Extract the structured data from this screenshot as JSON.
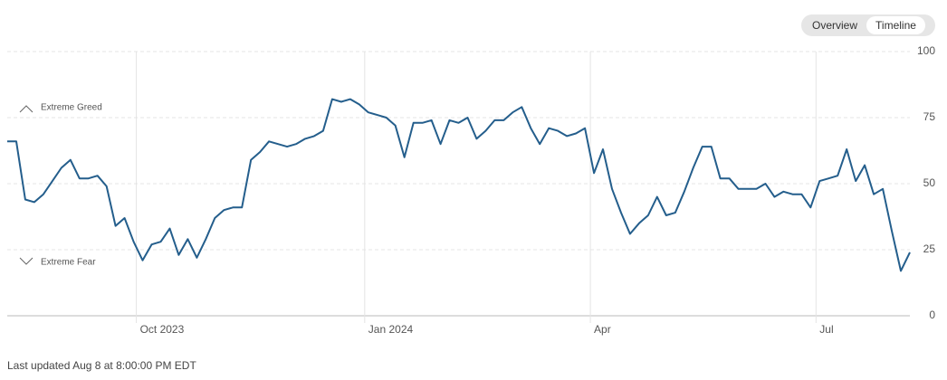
{
  "toggle": {
    "options": [
      "Overview",
      "Timeline"
    ],
    "selected": "Timeline"
  },
  "chart_data": {
    "type": "line",
    "color": "#245e8c",
    "values": [
      66,
      66,
      44,
      43,
      46,
      51,
      56,
      59,
      52,
      52,
      53,
      49,
      34,
      37,
      28,
      21,
      27,
      28,
      33,
      23,
      29,
      22,
      29,
      37,
      40,
      41,
      41,
      59,
      62,
      66,
      65,
      64,
      65,
      67,
      68,
      70,
      82,
      81,
      82,
      80,
      77,
      76,
      75,
      72,
      60,
      73,
      73,
      74,
      65,
      74,
      73,
      75,
      67,
      70,
      74,
      74,
      77,
      79,
      71,
      65,
      71,
      70,
      68,
      69,
      71,
      54,
      63,
      48,
      39,
      31,
      35,
      38,
      45,
      38,
      39,
      47,
      56,
      64,
      64,
      52,
      52,
      48,
      48,
      48,
      50,
      45,
      47,
      46,
      46,
      41,
      51,
      52,
      53,
      63,
      51,
      57,
      46,
      48,
      32,
      17,
      24
    ],
    "xlim": [
      0,
      100
    ],
    "xticks": [
      {
        "value": 14.3,
        "label": "Oct 2023"
      },
      {
        "value": 39.6,
        "label": "Jan 2024"
      },
      {
        "value": 64.6,
        "label": "Apr"
      },
      {
        "value": 89.6,
        "label": "Jul"
      }
    ],
    "ylim": [
      0,
      100
    ],
    "yticks": [
      0,
      25,
      50,
      75,
      100
    ],
    "grid": true,
    "annotations": [
      "Extreme Greed",
      "Extreme Fear"
    ]
  },
  "footer": "Last updated Aug 8 at 8:00:00 PM EDT"
}
